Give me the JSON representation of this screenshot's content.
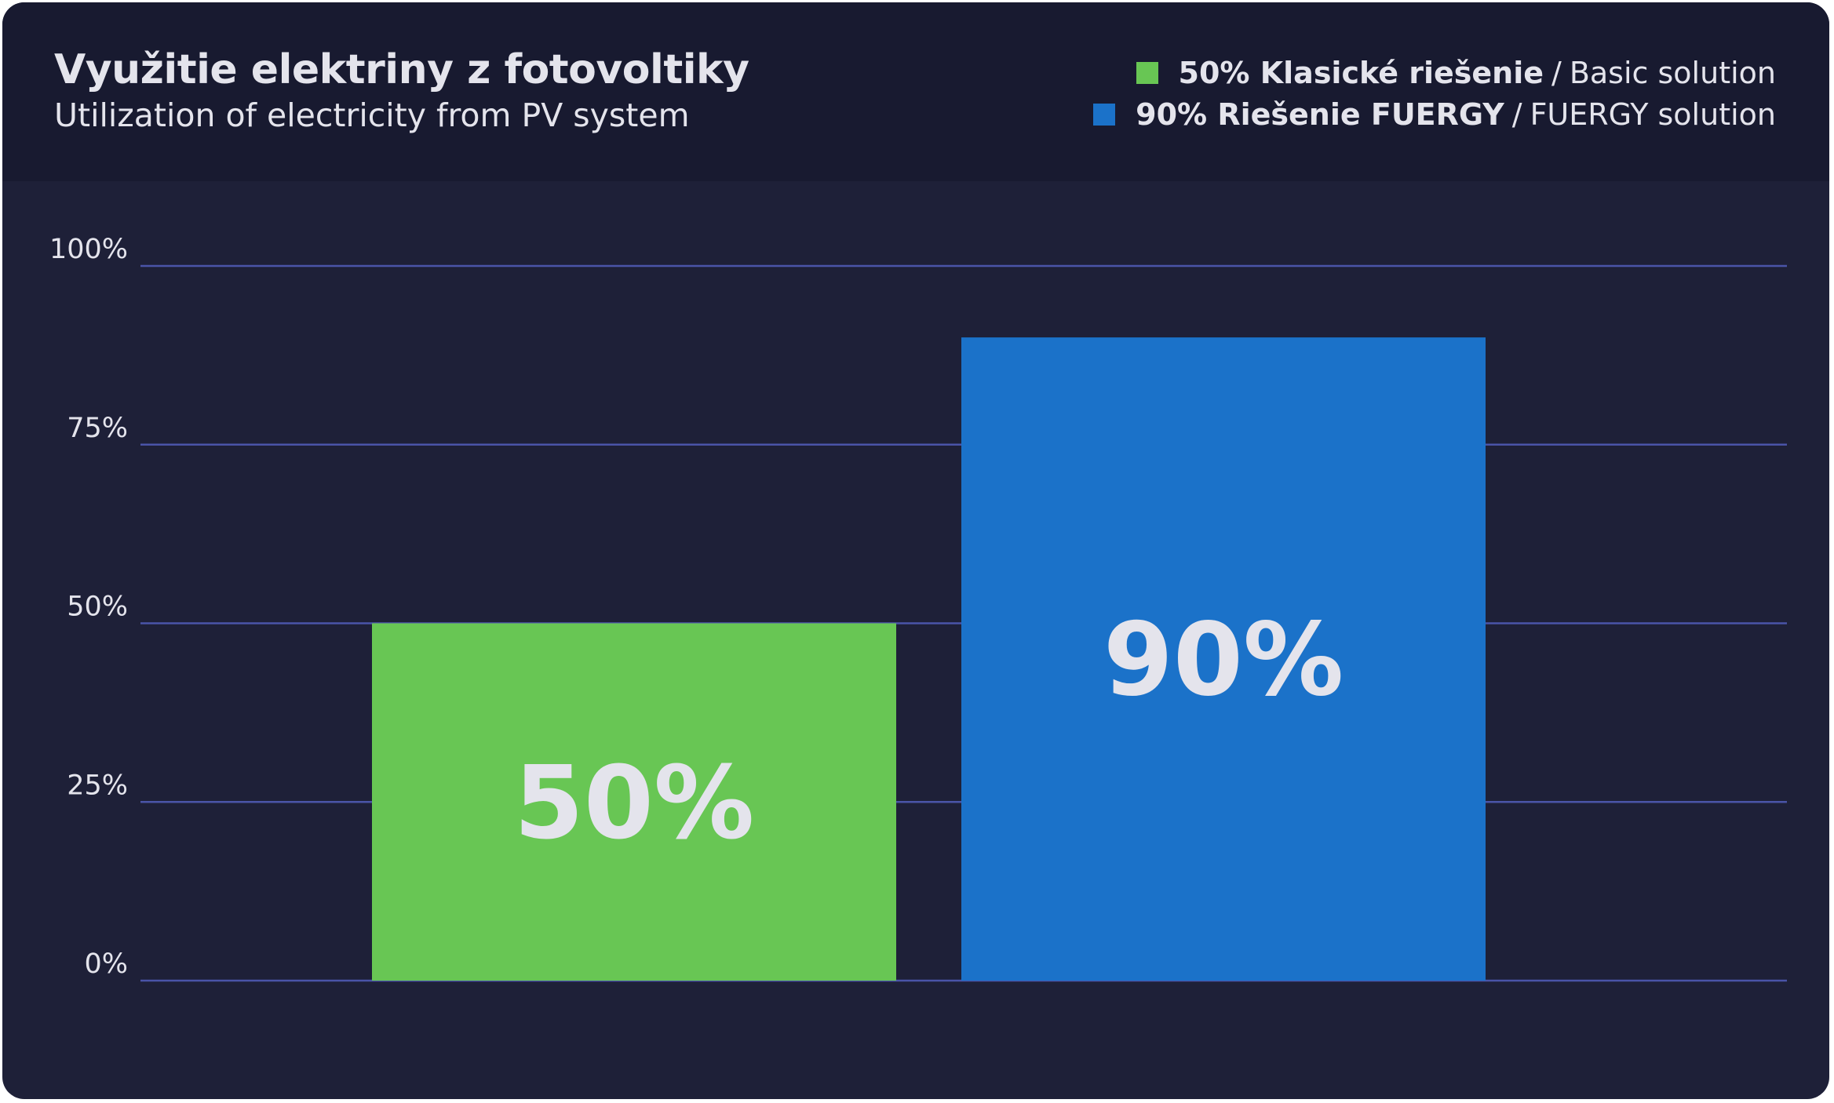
{
  "colors": {
    "background": "#1e2038",
    "header_background": "#181a30",
    "grid": "#4a54a8",
    "text": "#e4e4ec",
    "basic": "#68c654",
    "fuergy": "#1b72c9"
  },
  "header": {
    "title": "Využitie elektriny z fotovoltiky",
    "subtitle": "Utilization of electricity from PV system"
  },
  "legend": [
    {
      "strong": "50% Klasické riešenie",
      "separator": "/",
      "plain": "Basic solution",
      "color": "#68c654"
    },
    {
      "strong": "90% Riešenie FUERGY",
      "separator": "/",
      "plain": "FUERGY solution",
      "color": "#1b72c9"
    }
  ],
  "chart_data": {
    "type": "bar",
    "title": "Využitie elektriny z fotovoltiky",
    "subtitle": "Utilization of electricity from PV system",
    "xlabel": "",
    "ylabel": "",
    "ylim": [
      0,
      100
    ],
    "y_ticks": [
      0,
      25,
      50,
      75,
      100
    ],
    "y_tick_labels": [
      "0%",
      "25%",
      "50%",
      "75%",
      "100%"
    ],
    "grid": true,
    "legend_position": "top-right",
    "categories": [
      "Klasické riešenie",
      "Riešenie FUERGY"
    ],
    "values": [
      50,
      90
    ],
    "data_labels": [
      "50%",
      "90%"
    ],
    "bar_colors": [
      "#68c654",
      "#1b72c9"
    ]
  }
}
